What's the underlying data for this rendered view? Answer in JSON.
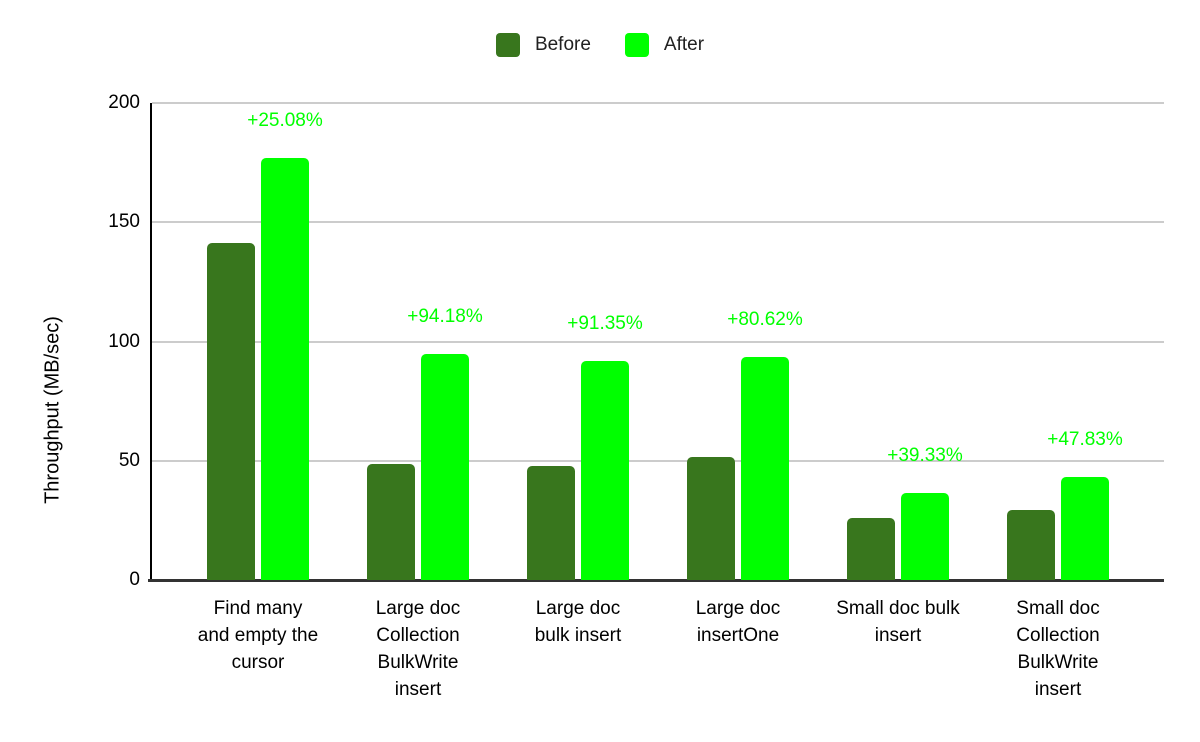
{
  "chart_data": {
    "type": "bar",
    "title": "",
    "ylabel": "Throughput (MB/sec)",
    "xlabel": "",
    "ylim": [
      0,
      200
    ],
    "yticks": [
      0,
      50,
      100,
      150,
      200
    ],
    "grid": true,
    "legend_position": "top-center",
    "categories": [
      "Find many and empty the cursor",
      "Large doc Collection BulkWrite insert",
      "Large doc bulk insert",
      "Large doc insertOne",
      "Small doc bulk insert",
      "Small doc Collection BulkWrite insert"
    ],
    "series": [
      {
        "name": "Before",
        "color": "#38761d",
        "values": [
          141.4,
          48.7,
          47.9,
          51.7,
          26.0,
          29.3
        ]
      },
      {
        "name": "After",
        "color": "#00ff00",
        "values": [
          176.9,
          94.6,
          91.7,
          93.4,
          36.3,
          43.3
        ]
      }
    ],
    "annotations": [
      "+25.08%",
      "+94.18%",
      "+91.35%",
      "+80.62%",
      "+39.33%",
      "+47.83%"
    ],
    "annotation_color": "#00ff00",
    "colors": {
      "axis": "#000000",
      "baseline": "#333333",
      "gridline": "#cccccc",
      "text": "#000000"
    }
  }
}
